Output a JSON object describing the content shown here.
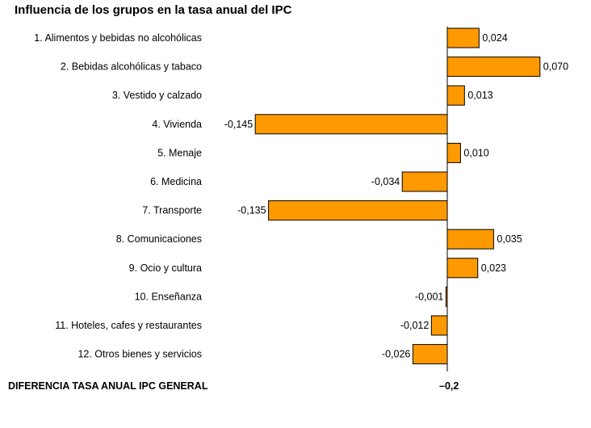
{
  "chart_data": {
    "type": "bar",
    "orientation": "horizontal",
    "title": "Influencia de los grupos en la tasa anual del IPC",
    "categories": [
      "1. Alimentos y bebidas no alcohólicas",
      "2. Bebidas alcohólicas y tabaco",
      "3. Vestido y calzado",
      "4. Vivienda",
      "5. Menaje",
      "6. Medicina",
      "7. Transporte",
      "8. Comunicaciones",
      "9. Ocio y cultura",
      "10. Enseñanza",
      "11. Hoteles, cafes y restaurantes",
      "12. Otros bienes y servicios"
    ],
    "values": [
      0.024,
      0.07,
      0.013,
      -0.145,
      0.01,
      -0.034,
      -0.135,
      0.035,
      0.023,
      -0.001,
      -0.012,
      -0.026
    ],
    "value_labels": [
      "0,024",
      "0,070",
      "0,013",
      "-0,145",
      "0,010",
      "-0,034",
      "-0,135",
      "0,035",
      "0,023",
      "-0,001",
      "-0,012",
      "-0,026"
    ],
    "bar_color": "#ff9900",
    "grid": false,
    "legend": "none"
  },
  "footer": {
    "label": "DIFERENCIA TASA ANUAL IPC GENERAL",
    "value": "–0,2"
  }
}
